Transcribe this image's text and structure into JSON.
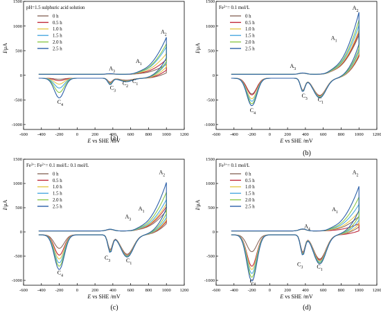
{
  "chart_data": [
    {
      "type": "line",
      "panel_caption": "(a)",
      "legend_title": "pH=1.5 sulphuric acid solution",
      "xlabel": "E vs SHE /mV",
      "ylabel": "I/μA",
      "xlim": [
        -600,
        1200
      ],
      "ylim": [
        -1100,
        1500
      ],
      "x_ticks": [
        -600,
        -400,
        -200,
        0,
        200,
        400,
        600,
        800,
        1000,
        1200
      ],
      "y_ticks": [
        -1000,
        -500,
        0,
        500,
        1000,
        1500
      ],
      "legend": [
        "0 h",
        "0.5 h",
        "1.0 h",
        "1.5 h",
        "2.0 h",
        "2.5 h"
      ],
      "peak_labels": [
        {
          "label": "A",
          "sub": "3",
          "x": 390,
          "y": 100
        },
        {
          "label": "A",
          "sub": "1",
          "x": 690,
          "y": 250
        },
        {
          "label": "A",
          "sub": "2",
          "x": 970,
          "y": 850
        },
        {
          "label": "C",
          "sub": "3",
          "x": 400,
          "y": -290
        },
        {
          "label": "C",
          "sub": "2",
          "x": 540,
          "y": -200
        },
        {
          "label": "C",
          "sub": "1",
          "x": 650,
          "y": -160
        },
        {
          "label": "C",
          "sub": "4",
          "x": -190,
          "y": -580
        }
      ],
      "x_start": -430,
      "x_vertex": 1000,
      "peaks": {
        "c4": -200,
        "c1": 550,
        "c3": 370,
        "a2": 1000
      },
      "series": [
        {
          "name": "0 h",
          "color": "#8a6a5e",
          "a2": 200,
          "c4": -20,
          "c1": -40,
          "c3": -80
        },
        {
          "name": "0.5 h",
          "color": "#c0293a",
          "a2": 300,
          "c4": -50,
          "c1": -50,
          "c3": -90
        },
        {
          "name": "1.0 h",
          "color": "#e6c84a",
          "a2": 420,
          "c4": -120,
          "c1": -55,
          "c3": -100
        },
        {
          "name": "1.5 h",
          "color": "#4aa8e0",
          "a2": 560,
          "c4": -200,
          "c1": -60,
          "c3": -110
        },
        {
          "name": "2.0 h",
          "color": "#8cc84a",
          "a2": 620,
          "c4": -290,
          "c1": -65,
          "c3": -120
        },
        {
          "name": "2.5 h",
          "color": "#2b5fa8",
          "a2": 750,
          "c4": -400,
          "c1": -70,
          "c3": -130
        }
      ]
    },
    {
      "type": "line",
      "panel_caption": "(b)",
      "legend_title": "Fe2+= 0.1 mol/L",
      "xlabel": "E vs SHE /mV",
      "ylabel": "I/μA",
      "xlim": [
        -600,
        1200
      ],
      "ylim": [
        -1100,
        1500
      ],
      "x_ticks": [
        -600,
        -400,
        -200,
        0,
        200,
        400,
        600,
        800,
        1000,
        1200
      ],
      "y_ticks": [
        -1000,
        -500,
        0,
        500,
        1000,
        1500
      ],
      "legend": [
        "0 h",
        "0.5 h",
        "1.0 h",
        "1.5 h",
        "2.0 h",
        "2.5 h"
      ],
      "peak_labels": [
        {
          "label": "A",
          "sub": "3",
          "x": 260,
          "y": 150
        },
        {
          "label": "A",
          "sub": "1",
          "x": 720,
          "y": 720
        },
        {
          "label": "A",
          "sub": "2",
          "x": 960,
          "y": 1330
        },
        {
          "label": "C",
          "sub": "3",
          "x": 390,
          "y": -450
        },
        {
          "label": "C",
          "sub": "1",
          "x": 570,
          "y": -530
        },
        {
          "label": "C",
          "sub": "4",
          "x": -190,
          "y": -750
        }
      ],
      "x_start": -430,
      "x_vertex": 1000,
      "peaks": {
        "c4": -200,
        "c1": 560,
        "c3": 370,
        "a2": 1000
      },
      "series": [
        {
          "name": "0 h",
          "color": "#8a6a5e",
          "a2": 800,
          "c4": -320,
          "c1": -350,
          "c3": -240
        },
        {
          "name": "0.5 h",
          "color": "#c0293a",
          "a2": 850,
          "c4": -340,
          "c1": -360,
          "c3": -245
        },
        {
          "name": "1.0 h",
          "color": "#e6c84a",
          "a2": 900,
          "c4": -420,
          "c1": -370,
          "c3": -250
        },
        {
          "name": "1.5 h",
          "color": "#4aa8e0",
          "a2": 1000,
          "c4": -470,
          "c1": -380,
          "c3": -255
        },
        {
          "name": "2.0 h",
          "color": "#8cc84a",
          "a2": 1100,
          "c4": -520,
          "c1": -390,
          "c3": -260
        },
        {
          "name": "2.5 h",
          "color": "#2b5fa8",
          "a2": 1260,
          "c4": -560,
          "c1": -400,
          "c3": -265
        }
      ]
    },
    {
      "type": "line",
      "panel_caption": "(c)",
      "legend_title": "Fe3+: Fe2+= 0.1 mol/L: 0.1 mol/L",
      "xlabel": "E vs SHE /mV",
      "ylabel": "I/μA",
      "xlim": [
        -600,
        1200
      ],
      "ylim": [
        -1100,
        1500
      ],
      "x_ticks": [
        -600,
        -400,
        -200,
        0,
        200,
        400,
        600,
        800,
        1000,
        1200
      ],
      "y_ticks": [
        -1000,
        -500,
        0,
        500,
        1000,
        1500
      ],
      "legend": [
        "0 h",
        "0.5 h",
        "1.0 h",
        "1.5 h",
        "2.0 h",
        "2.5 h"
      ],
      "peak_labels": [
        {
          "label": "A",
          "sub": "3",
          "x": 570,
          "y": 280
        },
        {
          "label": "A",
          "sub": "1",
          "x": 720,
          "y": 440
        },
        {
          "label": "A",
          "sub": "2",
          "x": 950,
          "y": 1190
        },
        {
          "label": "C",
          "sub": "3",
          "x": 340,
          "y": -570
        },
        {
          "label": "C",
          "sub": "1",
          "x": 580,
          "y": -630
        },
        {
          "label": "C",
          "sub": "4",
          "x": -190,
          "y": -880
        }
      ],
      "x_start": -430,
      "x_vertex": 1000,
      "peaks": {
        "c4": -200,
        "c1": 560,
        "c3": 370,
        "a2": 1000
      },
      "series": [
        {
          "name": "0 h",
          "color": "#8a6a5e",
          "a2": 420,
          "c4": -280,
          "c1": -400,
          "c3": -300
        },
        {
          "name": "0.5 h",
          "color": "#c0293a",
          "a2": 500,
          "c4": -420,
          "c1": -420,
          "c3": -320
        },
        {
          "name": "1.0 h",
          "color": "#e6c84a",
          "a2": 560,
          "c4": -500,
          "c1": -430,
          "c3": -330
        },
        {
          "name": "1.5 h",
          "color": "#4aa8e0",
          "a2": 650,
          "c4": -580,
          "c1": -440,
          "c3": -340
        },
        {
          "name": "2.0 h",
          "color": "#8cc84a",
          "a2": 800,
          "c4": -650,
          "c1": -450,
          "c3": -350
        },
        {
          "name": "2.5 h",
          "color": "#2b5fa8",
          "a2": 1000,
          "c4": -720,
          "c1": -460,
          "c3": -360
        }
      ]
    },
    {
      "type": "line",
      "panel_caption": "(d)",
      "legend_title": "Fe3+= 0.1 mol/L",
      "xlabel": "E vs SHE /mV",
      "ylabel": "I/μA",
      "xlim": [
        -600,
        1200
      ],
      "ylim": [
        -1100,
        1500
      ],
      "x_ticks": [
        -600,
        -400,
        -200,
        0,
        200,
        400,
        600,
        800,
        1000,
        1200
      ],
      "y_ticks": [
        -1000,
        -500,
        0,
        500,
        1000,
        1500
      ],
      "legend": [
        "0 h",
        "0.5 h",
        "1.0 h",
        "1.5 h",
        "2.0 h",
        "2.5 h"
      ],
      "peak_labels": [
        {
          "label": "A",
          "sub": "4",
          "x": 420,
          "y": 80
        },
        {
          "label": "A",
          "sub": "1",
          "x": 730,
          "y": 430
        },
        {
          "label": "A",
          "sub": "2",
          "x": 960,
          "y": 1190
        },
        {
          "label": "C",
          "sub": "3",
          "x": 340,
          "y": -710
        },
        {
          "label": "C",
          "sub": "1",
          "x": 560,
          "y": -760
        },
        {
          "label": "C",
          "sub": "4",
          "x": -190,
          "y": -1060
        }
      ],
      "x_start": -430,
      "x_vertex": 1000,
      "peaks": {
        "c4": -200,
        "c1": 560,
        "c3": 370,
        "a2": 1000
      },
      "series": [
        {
          "name": "0 h",
          "color": "#8a6a5e",
          "a2": 300,
          "c4": -350,
          "c1": -500,
          "c3": -350
        },
        {
          "name": "0.5 h",
          "color": "#c0293a",
          "a2": 150,
          "c4": -650,
          "c1": -520,
          "c3": -370
        },
        {
          "name": "1.0 h",
          "color": "#e6c84a",
          "a2": 400,
          "c4": -720,
          "c1": -540,
          "c3": -380
        },
        {
          "name": "1.5 h",
          "color": "#4aa8e0",
          "a2": 550,
          "c4": -800,
          "c1": -560,
          "c3": -390
        },
        {
          "name": "2.0 h",
          "color": "#8cc84a",
          "a2": 700,
          "c4": -880,
          "c1": -580,
          "c3": -400
        },
        {
          "name": "2.5 h",
          "color": "#2b5fa8",
          "a2": 920,
          "c4": -960,
          "c1": -600,
          "c3": -410
        }
      ]
    }
  ]
}
